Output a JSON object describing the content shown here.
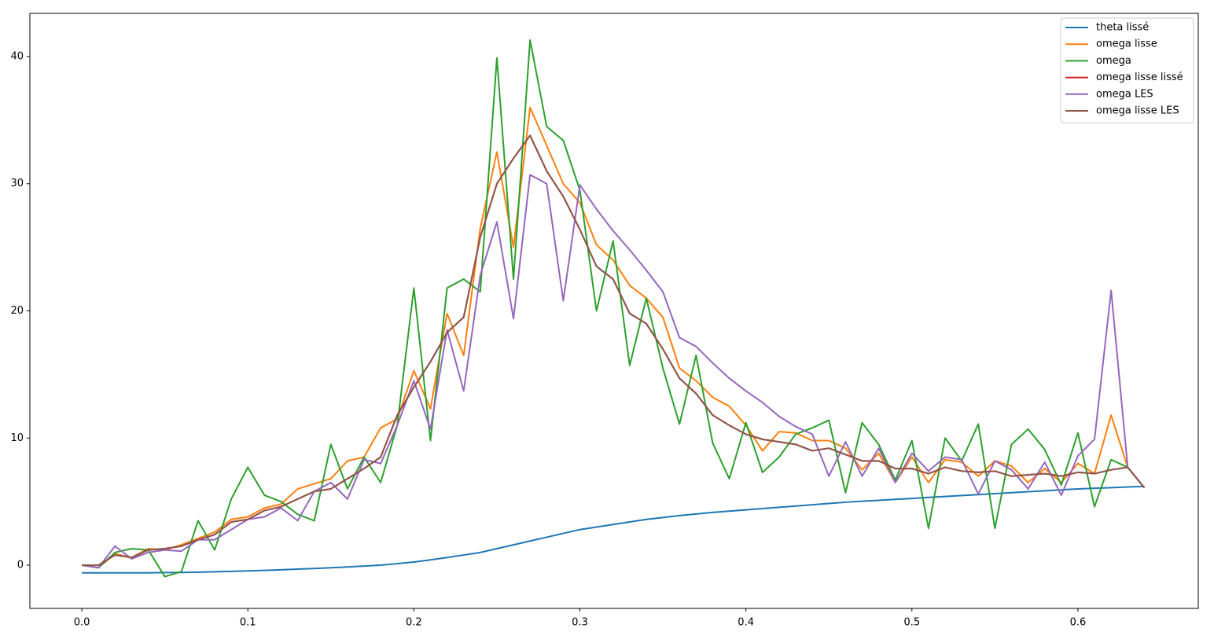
{
  "chart_data": {
    "type": "line",
    "x": [
      0,
      0.01,
      0.02,
      0.03,
      0.04,
      0.05,
      0.06,
      0.07,
      0.08,
      0.09,
      0.1,
      0.11,
      0.12,
      0.13,
      0.14,
      0.15,
      0.16,
      0.17,
      0.18,
      0.19,
      0.2,
      0.21,
      0.22,
      0.23,
      0.24,
      0.25,
      0.26,
      0.27,
      0.28,
      0.29,
      0.3,
      0.31,
      0.32,
      0.33,
      0.34,
      0.35,
      0.36,
      0.37,
      0.38,
      0.39,
      0.4,
      0.41,
      0.42,
      0.43,
      0.44,
      0.45,
      0.46,
      0.47,
      0.48,
      0.49,
      0.5,
      0.51,
      0.52,
      0.53,
      0.54,
      0.55,
      0.56,
      0.57,
      0.58,
      0.59,
      0.6,
      0.61,
      0.62,
      0.63,
      0.64
    ],
    "series": [
      {
        "name": "theta lissé",
        "color": "#1f77b4",
        "values": [
          -0.6,
          -0.6,
          -0.6,
          -0.6,
          -0.6,
          -0.58,
          -0.57,
          -0.55,
          -0.52,
          -0.49,
          -0.45,
          -0.41,
          -0.36,
          -0.31,
          -0.26,
          -0.2,
          -0.14,
          -0.07,
          0,
          0.12,
          0.25,
          0.42,
          0.6,
          0.8,
          1.0,
          1.3,
          1.6,
          1.9,
          2.2,
          2.5,
          2.8,
          3.0,
          3.2,
          3.4,
          3.6,
          3.75,
          3.9,
          4.03,
          4.15,
          4.25,
          4.35,
          4.45,
          4.55,
          4.65,
          4.75,
          4.85,
          4.95,
          5.03,
          5.1,
          5.18,
          5.25,
          5.33,
          5.4,
          5.48,
          5.55,
          5.63,
          5.7,
          5.78,
          5.85,
          5.93,
          6.0,
          6.05,
          6.1,
          6.15,
          6.2
        ]
      },
      {
        "name": "omega lisse",
        "color": "#ff7f0e",
        "values": [
          0,
          -0.2,
          0.9,
          0.6,
          1.3,
          1.2,
          1.6,
          2.1,
          2.6,
          3.6,
          3.8,
          4.5,
          4.8,
          6.0,
          6.4,
          6.8,
          8.2,
          8.5,
          10.8,
          11.5,
          15.3,
          12.3,
          19.8,
          16.5,
          26.5,
          32.5,
          25,
          36,
          33,
          30,
          28.5,
          25.2,
          24,
          22,
          21,
          19.5,
          15.5,
          14.5,
          13.2,
          12.5,
          11,
          9,
          10.5,
          10.4,
          9.8,
          9.8,
          9.2,
          7.5,
          8.8,
          6.5,
          8.5,
          6.5,
          8.3,
          8.1,
          7.0,
          8.2,
          7.8,
          6.5,
          7.6,
          6.5,
          8.0,
          7.2,
          11.8,
          7.7,
          6.1
        ]
      },
      {
        "name": "omega",
        "color": "#2ca02c",
        "values": [
          0,
          -0.2,
          1.0,
          1.3,
          1.2,
          -0.9,
          -0.5,
          3.5,
          1.2,
          5.2,
          7.7,
          5.5,
          5.0,
          4.0,
          3.5,
          9.5,
          6.0,
          8.5,
          6.5,
          11.0,
          21.8,
          9.8,
          21.8,
          22.5,
          21.5,
          39.9,
          22.5,
          41.3,
          34.5,
          33.4,
          29.5,
          20,
          25.5,
          15.7,
          21,
          15.5,
          11.1,
          16.5,
          9.6,
          6.8,
          11.2,
          7.3,
          8.5,
          10.3,
          10.8,
          11.4,
          5.7,
          11.2,
          9.5,
          6.7,
          9.8,
          2.9,
          10.0,
          8.2,
          11.1,
          2.9,
          9.5,
          10.7,
          9.1,
          6.3,
          10.4,
          4.6,
          8.3,
          7.7,
          6.1
        ]
      },
      {
        "name": "omega lisse lissé",
        "color": "#d62728",
        "values": [
          0,
          0,
          0.8,
          0.6,
          1.2,
          1.3,
          1.5,
          2.0,
          2.4,
          3.4,
          3.6,
          4.3,
          4.6,
          5.2,
          5.8,
          6.0,
          6.8,
          7.6,
          8.5,
          11.8,
          14,
          16,
          18.3,
          19.5,
          25.8,
          30,
          32,
          33.8,
          31,
          29,
          26.4,
          23.5,
          22.5,
          19.8,
          19,
          17,
          14.7,
          13.5,
          11.8,
          11,
          10.3,
          9.9,
          9.7,
          9.5,
          9.0,
          9.2,
          8.7,
          8.2,
          8.2,
          7.6,
          7.6,
          7.2,
          7.7,
          7.4,
          7.3,
          7.4,
          7.0,
          7.1,
          7.2,
          7.0,
          7.3,
          7.2,
          7.5,
          7.7,
          6.1
        ]
      },
      {
        "name": "omega LES",
        "color": "#9467bd",
        "values": [
          0,
          -0.2,
          1.5,
          0.5,
          1.0,
          1.2,
          1.1,
          2.0,
          2.0,
          2.8,
          3.6,
          3.8,
          4.5,
          3.5,
          5.8,
          6.5,
          5.2,
          8.3,
          8.0,
          11.0,
          14.5,
          10.7,
          18.5,
          13.7,
          22.8,
          27,
          19.4,
          30.7,
          30,
          20.8,
          29.9,
          28,
          26.3,
          24.8,
          23.2,
          21.5,
          17.9,
          17.2,
          15.9,
          14.7,
          13.7,
          12.8,
          11.7,
          10.9,
          10.3,
          7.0,
          9.7,
          7.0,
          9.2,
          6.5,
          8.8,
          7.4,
          8.5,
          8.3,
          5.6,
          8.2,
          7.5,
          6.0,
          8.1,
          5.5,
          8.6,
          9.9,
          21.6,
          7.7,
          6.1
        ]
      },
      {
        "name": "omega lisse LES",
        "color": "#8c564b",
        "values": [
          0,
          0,
          0.8,
          0.6,
          1.2,
          1.3,
          1.5,
          2.0,
          2.4,
          3.4,
          3.6,
          4.3,
          4.6,
          5.2,
          5.8,
          6.0,
          6.8,
          7.6,
          8.5,
          11.8,
          14,
          16,
          18.3,
          19.5,
          25.8,
          30,
          32,
          33.8,
          31,
          29,
          26.4,
          23.5,
          22.5,
          19.8,
          19,
          17,
          14.7,
          13.5,
          11.8,
          11,
          10.3,
          9.9,
          9.7,
          9.5,
          9.0,
          9.2,
          8.7,
          8.2,
          8.2,
          7.6,
          7.6,
          7.2,
          7.7,
          7.4,
          7.3,
          7.4,
          7.0,
          7.1,
          7.2,
          7.0,
          7.3,
          7.2,
          7.5,
          7.7,
          6.1
        ]
      }
    ],
    "xlim": [
      -0.0313,
      0.6725
    ],
    "ylim": [
      -3.4,
      43.4
    ],
    "xticks": [
      {
        "value": 0,
        "label": "0.0"
      },
      0.1,
      0.2,
      0.3,
      0.4,
      0.5,
      0.6
    ],
    "yticks": [
      0,
      10,
      20,
      30,
      40
    ],
    "legend": "upper right",
    "grid": false
  }
}
